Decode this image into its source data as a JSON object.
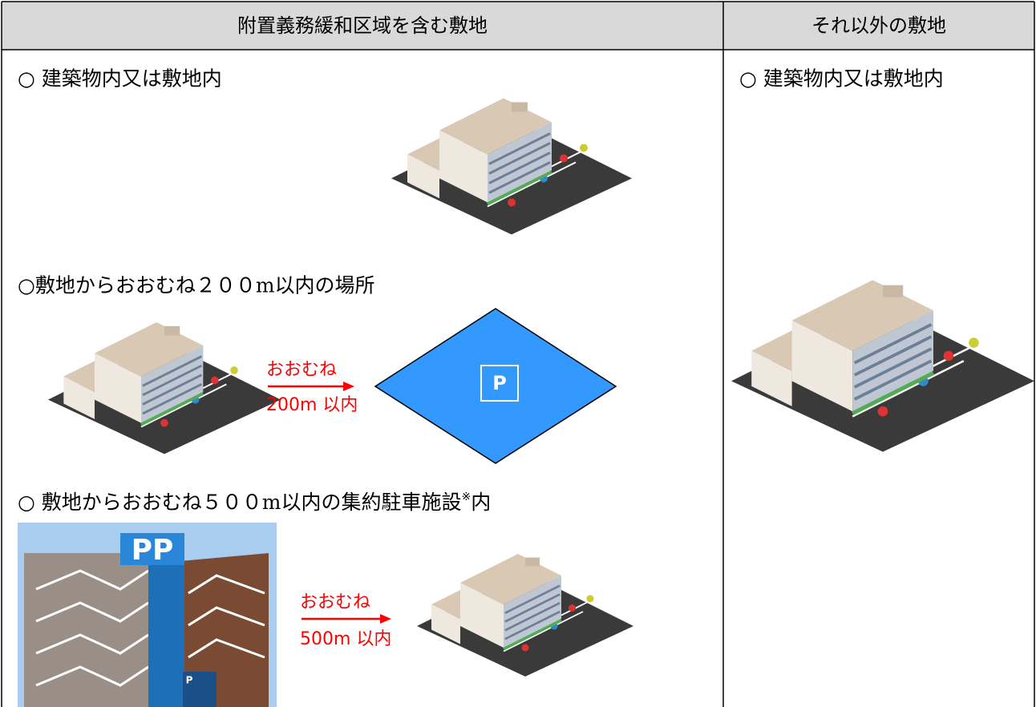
{
  "table": {
    "header": [
      "附置義務緩和区域を含む敷地",
      "それ以外の敷地"
    ],
    "left": {
      "item1": "○ 建築物内又は敷地内",
      "item2": "○敷地からおおむね２００m以内の場所",
      "item2_arrow": [
        "おおむね",
        "200m 以内"
      ],
      "item2_sign": "P",
      "item3": [
        "○ 敷地からおおむね５００m以内の集約駐車施設",
        "※",
        "内"
      ],
      "item3_arrow": [
        "おおむね",
        "500m 以内"
      ],
      "item3_tower": "PP",
      "item3_sign": "P"
    },
    "right": {
      "item1": "○ 建築物内又は敷地内"
    }
  }
}
